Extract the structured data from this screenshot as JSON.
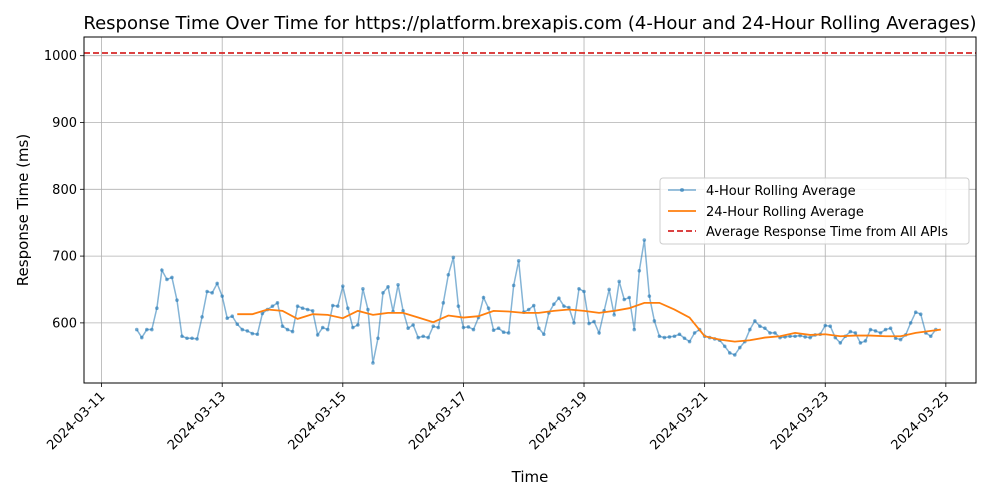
{
  "chart_data": {
    "type": "line",
    "title": "Response Time Over Time for https://platform.brexapis.com (4-Hour and 24-Hour Rolling Averages)",
    "xlabel": "Time",
    "ylabel": "Response Time (ms)",
    "x_tick_labels": [
      "2024-03-11",
      "2024-03-13",
      "2024-03-15",
      "2024-03-17",
      "2024-03-19",
      "2024-03-21",
      "2024-03-23",
      "2024-03-25"
    ],
    "y_ticks": [
      600,
      700,
      800,
      900,
      1000
    ],
    "xlim": [
      "2024-03-10T17:00",
      "2024-03-25T12:00"
    ],
    "ylim": [
      510,
      1028
    ],
    "grid": true,
    "legend_position": "center-right",
    "colors": {
      "four_hour": "#1f77b4",
      "twenty_four_hour": "#ff7f0e",
      "reference": "#d62728"
    },
    "series": [
      {
        "name": "4-Hour Rolling Average",
        "style": "line-with-markers",
        "points": [
          [
            "2024-03-11T14:00",
            590
          ],
          [
            "2024-03-11T16:00",
            578
          ],
          [
            "2024-03-11T18:00",
            590
          ],
          [
            "2024-03-11T20:00",
            590
          ],
          [
            "2024-03-11T22:00",
            622
          ],
          [
            "2024-03-12T00:00",
            679
          ],
          [
            "2024-03-12T02:00",
            665
          ],
          [
            "2024-03-12T04:00",
            668
          ],
          [
            "2024-03-12T06:00",
            634
          ],
          [
            "2024-03-12T08:00",
            580
          ],
          [
            "2024-03-12T10:00",
            577
          ],
          [
            "2024-03-12T12:00",
            577
          ],
          [
            "2024-03-12T14:00",
            576
          ],
          [
            "2024-03-12T16:00",
            609
          ],
          [
            "2024-03-12T18:00",
            647
          ],
          [
            "2024-03-12T20:00",
            645
          ],
          [
            "2024-03-12T22:00",
            659
          ],
          [
            "2024-03-13T00:00",
            640
          ],
          [
            "2024-03-13T02:00",
            607
          ],
          [
            "2024-03-13T04:00",
            610
          ],
          [
            "2024-03-13T06:00",
            598
          ],
          [
            "2024-03-13T08:00",
            590
          ],
          [
            "2024-03-13T10:00",
            588
          ],
          [
            "2024-03-13T12:00",
            584
          ],
          [
            "2024-03-13T14:00",
            583
          ],
          [
            "2024-03-13T16:00",
            614
          ],
          [
            "2024-03-13T18:00",
            620
          ],
          [
            "2024-03-13T20:00",
            625
          ],
          [
            "2024-03-13T22:00",
            630
          ],
          [
            "2024-03-14T00:00",
            595
          ],
          [
            "2024-03-14T02:00",
            590
          ],
          [
            "2024-03-14T04:00",
            587
          ],
          [
            "2024-03-14T06:00",
            625
          ],
          [
            "2024-03-14T08:00",
            622
          ],
          [
            "2024-03-14T10:00",
            620
          ],
          [
            "2024-03-14T12:00",
            618
          ],
          [
            "2024-03-14T14:00",
            582
          ],
          [
            "2024-03-14T16:00",
            593
          ],
          [
            "2024-03-14T18:00",
            590
          ],
          [
            "2024-03-14T20:00",
            626
          ],
          [
            "2024-03-14T22:00",
            625
          ],
          [
            "2024-03-15T00:00",
            655
          ],
          [
            "2024-03-15T02:00",
            622
          ],
          [
            "2024-03-15T04:00",
            593
          ],
          [
            "2024-03-15T06:00",
            597
          ],
          [
            "2024-03-15T08:00",
            651
          ],
          [
            "2024-03-15T10:00",
            620
          ],
          [
            "2024-03-15T12:00",
            540
          ],
          [
            "2024-03-15T14:00",
            577
          ],
          [
            "2024-03-15T16:00",
            645
          ],
          [
            "2024-03-15T18:00",
            654
          ],
          [
            "2024-03-15T20:00",
            617
          ],
          [
            "2024-03-15T22:00",
            657
          ],
          [
            "2024-03-16T00:00",
            618
          ],
          [
            "2024-03-16T02:00",
            592
          ],
          [
            "2024-03-16T04:00",
            597
          ],
          [
            "2024-03-16T06:00",
            578
          ],
          [
            "2024-03-16T08:00",
            580
          ],
          [
            "2024-03-16T10:00",
            578
          ],
          [
            "2024-03-16T12:00",
            595
          ],
          [
            "2024-03-16T14:00",
            593
          ],
          [
            "2024-03-16T16:00",
            630
          ],
          [
            "2024-03-16T18:00",
            672
          ],
          [
            "2024-03-16T20:00",
            698
          ],
          [
            "2024-03-16T22:00",
            625
          ],
          [
            "2024-03-17T00:00",
            593
          ],
          [
            "2024-03-17T02:00",
            594
          ],
          [
            "2024-03-17T04:00",
            590
          ],
          [
            "2024-03-17T06:00",
            608
          ],
          [
            "2024-03-17T08:00",
            638
          ],
          [
            "2024-03-17T10:00",
            622
          ],
          [
            "2024-03-17T12:00",
            589
          ],
          [
            "2024-03-17T14:00",
            592
          ],
          [
            "2024-03-17T16:00",
            586
          ],
          [
            "2024-03-17T18:00",
            585
          ],
          [
            "2024-03-17T20:00",
            656
          ],
          [
            "2024-03-17T22:00",
            693
          ],
          [
            "2024-03-18T00:00",
            616
          ],
          [
            "2024-03-18T02:00",
            620
          ],
          [
            "2024-03-18T04:00",
            626
          ],
          [
            "2024-03-18T06:00",
            592
          ],
          [
            "2024-03-18T08:00",
            583
          ],
          [
            "2024-03-18T10:00",
            615
          ],
          [
            "2024-03-18T12:00",
            628
          ],
          [
            "2024-03-18T14:00",
            637
          ],
          [
            "2024-03-18T16:00",
            625
          ],
          [
            "2024-03-18T18:00",
            623
          ],
          [
            "2024-03-18T20:00",
            600
          ],
          [
            "2024-03-18T22:00",
            651
          ],
          [
            "2024-03-19T00:00",
            647
          ],
          [
            "2024-03-19T02:00",
            599
          ],
          [
            "2024-03-19T04:00",
            602
          ],
          [
            "2024-03-19T06:00",
            585
          ],
          [
            "2024-03-19T08:00",
            618
          ],
          [
            "2024-03-19T10:00",
            650
          ],
          [
            "2024-03-19T12:00",
            612
          ],
          [
            "2024-03-19T14:00",
            662
          ],
          [
            "2024-03-19T16:00",
            635
          ],
          [
            "2024-03-19T18:00",
            638
          ],
          [
            "2024-03-19T20:00",
            590
          ],
          [
            "2024-03-19T22:00",
            678
          ],
          [
            "2024-03-20T00:00",
            724
          ],
          [
            "2024-03-20T02:00",
            640
          ],
          [
            "2024-03-20T04:00",
            603
          ],
          [
            "2024-03-20T06:00",
            580
          ],
          [
            "2024-03-20T08:00",
            578
          ],
          [
            "2024-03-20T10:00",
            579
          ],
          [
            "2024-03-20T12:00",
            580
          ],
          [
            "2024-03-20T14:00",
            583
          ],
          [
            "2024-03-20T16:00",
            577
          ],
          [
            "2024-03-20T18:00",
            572
          ],
          [
            "2024-03-20T20:00",
            585
          ],
          [
            "2024-03-20T22:00",
            590
          ],
          [
            "2024-03-21T00:00",
            580
          ],
          [
            "2024-03-21T02:00",
            578
          ],
          [
            "2024-03-21T04:00",
            576
          ],
          [
            "2024-03-21T06:00",
            574
          ],
          [
            "2024-03-21T08:00",
            565
          ],
          [
            "2024-03-21T10:00",
            555
          ],
          [
            "2024-03-21T12:00",
            552
          ],
          [
            "2024-03-21T14:00",
            563
          ],
          [
            "2024-03-21T16:00",
            572
          ],
          [
            "2024-03-21T18:00",
            590
          ],
          [
            "2024-03-21T20:00",
            603
          ],
          [
            "2024-03-21T22:00",
            595
          ],
          [
            "2024-03-22T00:00",
            592
          ],
          [
            "2024-03-22T02:00",
            585
          ],
          [
            "2024-03-22T04:00",
            585
          ],
          [
            "2024-03-22T06:00",
            578
          ],
          [
            "2024-03-22T08:00",
            579
          ],
          [
            "2024-03-22T10:00",
            580
          ],
          [
            "2024-03-22T12:00",
            580
          ],
          [
            "2024-03-22T14:00",
            581
          ],
          [
            "2024-03-22T16:00",
            579
          ],
          [
            "2024-03-22T18:00",
            578
          ],
          [
            "2024-03-22T20:00",
            582
          ],
          [
            "2024-03-22T22:00",
            583
          ],
          [
            "2024-03-23T00:00",
            596
          ],
          [
            "2024-03-23T02:00",
            595
          ],
          [
            "2024-03-23T04:00",
            578
          ],
          [
            "2024-03-23T06:00",
            570
          ],
          [
            "2024-03-23T08:00",
            580
          ],
          [
            "2024-03-23T10:00",
            587
          ],
          [
            "2024-03-23T12:00",
            585
          ],
          [
            "2024-03-23T14:00",
            570
          ],
          [
            "2024-03-23T16:00",
            573
          ],
          [
            "2024-03-23T18:00",
            590
          ],
          [
            "2024-03-23T20:00",
            588
          ],
          [
            "2024-03-23T22:00",
            585
          ],
          [
            "2024-03-24T00:00",
            590
          ],
          [
            "2024-03-24T02:00",
            592
          ],
          [
            "2024-03-24T04:00",
            577
          ],
          [
            "2024-03-24T06:00",
            575
          ],
          [
            "2024-03-24T08:00",
            582
          ],
          [
            "2024-03-24T10:00",
            600
          ],
          [
            "2024-03-24T12:00",
            616
          ],
          [
            "2024-03-24T14:00",
            613
          ],
          [
            "2024-03-24T16:00",
            585
          ],
          [
            "2024-03-24T18:00",
            580
          ],
          [
            "2024-03-24T20:00",
            590
          ]
        ]
      },
      {
        "name": "24-Hour Rolling Average",
        "style": "line",
        "points": [
          [
            "2024-03-13T06:00",
            613
          ],
          [
            "2024-03-13T12:00",
            613
          ],
          [
            "2024-03-13T18:00",
            620
          ],
          [
            "2024-03-14T00:00",
            618
          ],
          [
            "2024-03-14T06:00",
            606
          ],
          [
            "2024-03-14T12:00",
            613
          ],
          [
            "2024-03-14T18:00",
            612
          ],
          [
            "2024-03-15T00:00",
            607
          ],
          [
            "2024-03-15T06:00",
            618
          ],
          [
            "2024-03-15T12:00",
            612
          ],
          [
            "2024-03-15T18:00",
            615
          ],
          [
            "2024-03-16T00:00",
            615
          ],
          [
            "2024-03-16T06:00",
            608
          ],
          [
            "2024-03-16T12:00",
            601
          ],
          [
            "2024-03-16T18:00",
            611
          ],
          [
            "2024-03-17T00:00",
            608
          ],
          [
            "2024-03-17T06:00",
            610
          ],
          [
            "2024-03-17T12:00",
            618
          ],
          [
            "2024-03-17T18:00",
            617
          ],
          [
            "2024-03-18T00:00",
            615
          ],
          [
            "2024-03-18T06:00",
            615
          ],
          [
            "2024-03-18T12:00",
            618
          ],
          [
            "2024-03-18T18:00",
            620
          ],
          [
            "2024-03-19T00:00",
            618
          ],
          [
            "2024-03-19T06:00",
            615
          ],
          [
            "2024-03-19T12:00",
            618
          ],
          [
            "2024-03-19T18:00",
            622
          ],
          [
            "2024-03-20T00:00",
            630
          ],
          [
            "2024-03-20T06:00",
            630
          ],
          [
            "2024-03-20T12:00",
            620
          ],
          [
            "2024-03-20T18:00",
            608
          ],
          [
            "2024-03-21T00:00",
            580
          ],
          [
            "2024-03-21T06:00",
            575
          ],
          [
            "2024-03-21T12:00",
            572
          ],
          [
            "2024-03-21T18:00",
            574
          ],
          [
            "2024-03-22T00:00",
            578
          ],
          [
            "2024-03-22T06:00",
            580
          ],
          [
            "2024-03-22T12:00",
            585
          ],
          [
            "2024-03-22T18:00",
            582
          ],
          [
            "2024-03-23T00:00",
            583
          ],
          [
            "2024-03-23T06:00",
            580
          ],
          [
            "2024-03-23T12:00",
            581
          ],
          [
            "2024-03-23T18:00",
            581
          ],
          [
            "2024-03-24T00:00",
            580
          ],
          [
            "2024-03-24T06:00",
            580
          ],
          [
            "2024-03-24T12:00",
            585
          ],
          [
            "2024-03-24T18:00",
            588
          ],
          [
            "2024-03-24T22:00",
            590
          ]
        ]
      },
      {
        "name": "Average Response Time from All APIs",
        "style": "dashed-horizontal",
        "value": 1004
      }
    ]
  }
}
